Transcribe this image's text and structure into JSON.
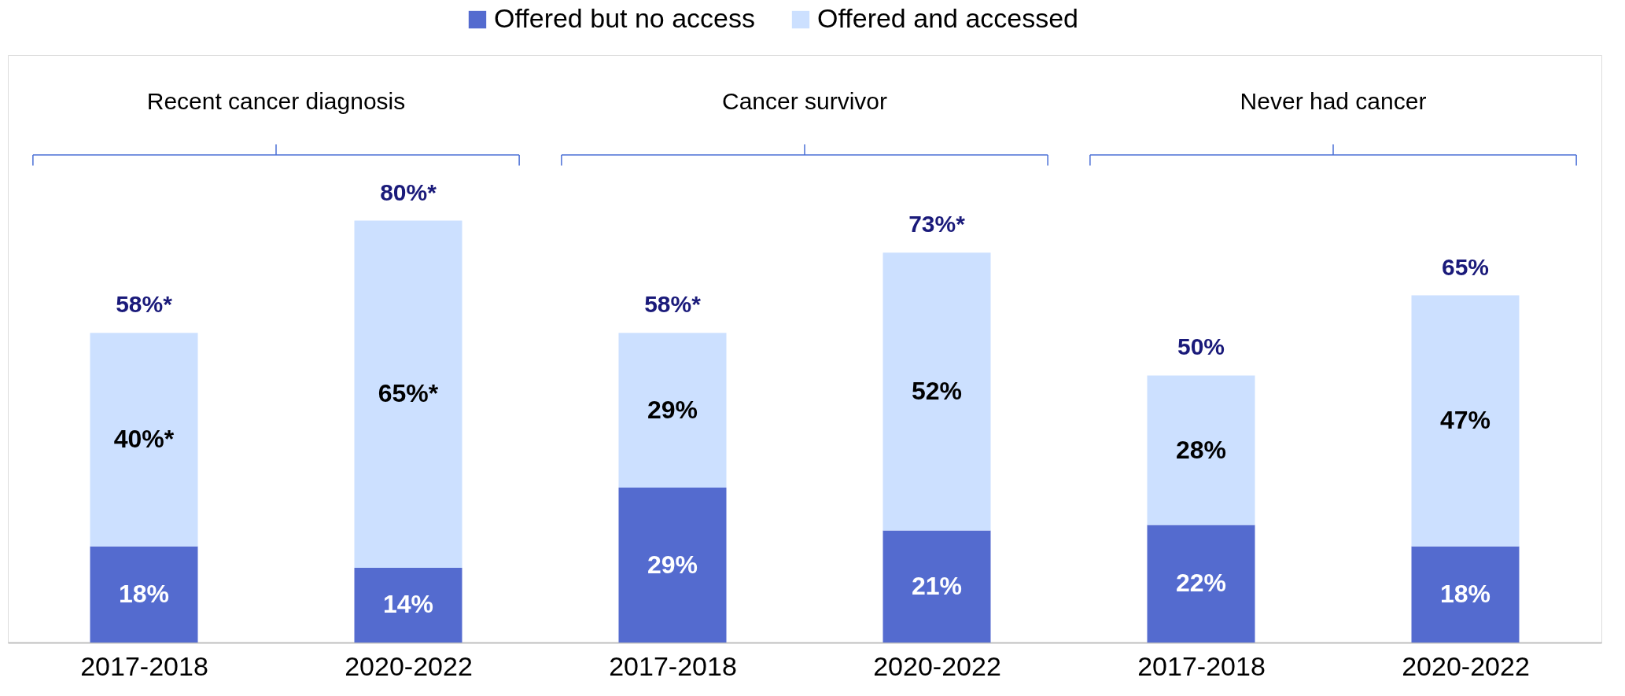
{
  "chart_data": {
    "type": "bar",
    "stacked": true,
    "categories": [
      "2017-2018",
      "2020-2022",
      "2017-2018",
      "2020-2022",
      "2017-2018",
      "2020-2022"
    ],
    "series": [
      {
        "name": "Offered but no access",
        "color": "#546bcf",
        "values": [
          18,
          14,
          29,
          21,
          22,
          18
        ],
        "value_labels": [
          "18%",
          "14%",
          "29%",
          "21%",
          "22%",
          "18%"
        ]
      },
      {
        "name": "Offered and accessed",
        "color": "#cce0ff",
        "values": [
          40,
          65,
          29,
          52,
          28,
          47
        ],
        "value_labels": [
          "40%*",
          "65%*",
          "29%",
          "52%",
          "28%",
          "47%"
        ]
      }
    ],
    "totals": [
      "58%*",
      "80%*",
      "58%*",
      "73%*",
      "50%",
      "65%"
    ],
    "annotations": [
      "Recent cancer diagnosis",
      "Cancer survivor",
      "Never had cancer"
    ],
    "ylim": [
      0,
      110
    ],
    "tick_labels": "x",
    "grid": false,
    "legend": "top"
  }
}
